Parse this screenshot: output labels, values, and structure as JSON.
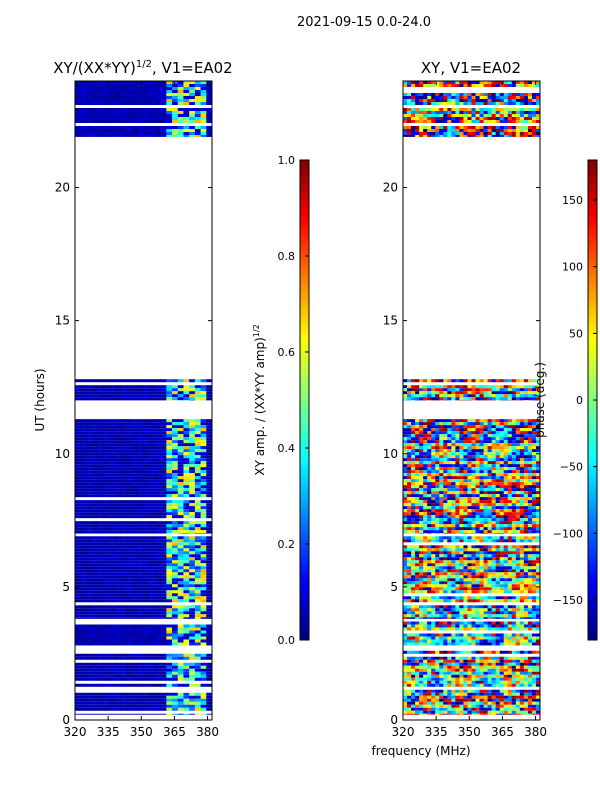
{
  "figure_title": "2021-09-15 0.0-24.0",
  "x_label": "frequency (MHz)",
  "chart_data": [
    {
      "type": "heatmap",
      "title_main": "XY/(XX*YY)",
      "title_sup": "1/2",
      "title_tail": ", V1=EA02",
      "ylabel": "UT (hours)",
      "xlim": [
        320,
        382
      ],
      "ylim": [
        0,
        24
      ],
      "x_ticks": [
        "320",
        "335",
        "350",
        "365",
        "380"
      ],
      "x_tick_values": [
        320,
        335,
        350,
        365,
        380
      ],
      "y_ticks": [
        "0",
        "5",
        "10",
        "15",
        "20"
      ],
      "y_tick_values": [
        0,
        5,
        10,
        15,
        20
      ],
      "data_rows_hours": [
        [
          0.2,
          2.6
        ],
        [
          2.8,
          3.7
        ],
        [
          3.8,
          6.9
        ],
        [
          7.0,
          11.3
        ],
        [
          12.0,
          12.8
        ],
        [
          21.9,
          24.0
        ]
      ],
      "band_mhz": [
        362,
        379
      ],
      "colormap": "jet",
      "colorbar": {
        "label_main": "XY amp. / (XX*YY amp)",
        "label_sup": "1/2",
        "range": [
          0,
          1
        ],
        "ticks": [
          "0.0",
          "0.2",
          "0.4",
          "0.6",
          "0.8",
          "1.0"
        ],
        "tick_values": [
          0,
          0.2,
          0.4,
          0.6,
          0.8,
          1.0
        ]
      }
    },
    {
      "type": "heatmap",
      "title": "XY, V1=EA02",
      "xlim": [
        320,
        382
      ],
      "ylim": [
        0,
        24
      ],
      "x_ticks": [
        "320",
        "335",
        "350",
        "365",
        "380"
      ],
      "x_tick_values": [
        320,
        335,
        350,
        365,
        380
      ],
      "y_ticks": [
        "0",
        "5",
        "10",
        "15",
        "20"
      ],
      "y_tick_values": [
        0,
        5,
        10,
        15,
        20
      ],
      "data_rows_hours": [
        [
          0.2,
          2.6
        ],
        [
          2.8,
          3.7
        ],
        [
          3.8,
          6.9
        ],
        [
          7.0,
          11.3
        ],
        [
          12.0,
          12.8
        ],
        [
          21.9,
          24.0
        ]
      ],
      "colormap": "jet",
      "colorbar": {
        "label": "phase (deg.)",
        "range": [
          -180,
          180
        ],
        "ticks": [
          "−150",
          "−100",
          "−50",
          "0",
          "50",
          "100",
          "150"
        ],
        "tick_values": [
          -150,
          -100,
          -50,
          0,
          50,
          100,
          150
        ]
      }
    }
  ]
}
